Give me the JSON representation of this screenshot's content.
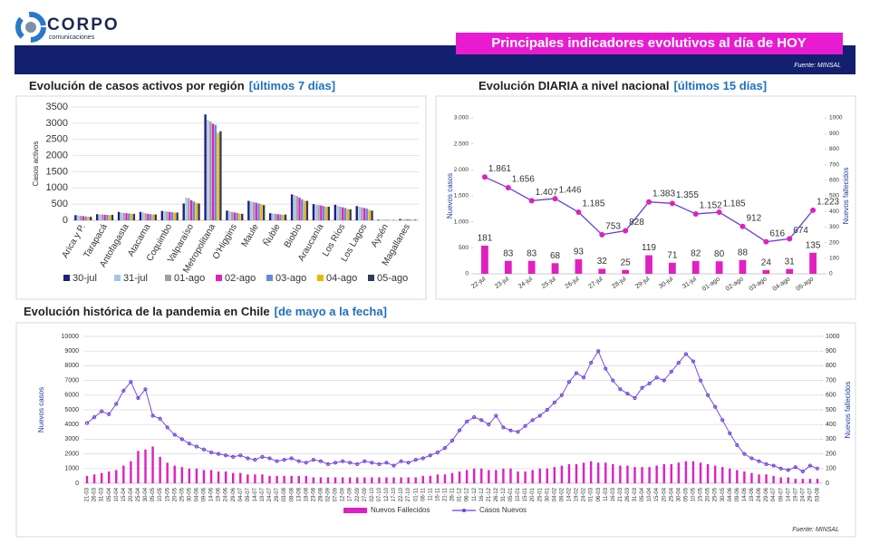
{
  "header": {
    "brand": "CORPO",
    "brand_sub": "comunicaciones",
    "title": "Principales indicadores evolutivos al día de HOY",
    "source": "Fuente: MINSAL"
  },
  "footer": {
    "source": "Fuente: MINSAL"
  },
  "chart_data": [
    {
      "type": "bar",
      "title": "Evolución de casos activos por región",
      "subtitle": "[últimos 7 días]",
      "y_label": "Casos activos",
      "categories": [
        "Arica y P.",
        "Tarapacá",
        "Antofagasta",
        "Atacama",
        "Coquimbo",
        "Valparaíso",
        "Metropolitana",
        "O'Higgins",
        "Maule",
        "Ñuble",
        "Biobío",
        "Araucanía",
        "Los Ríos",
        "Los Lagos",
        "Aysén",
        "Magallanes"
      ],
      "series": [
        {
          "name": "30-jul",
          "color": "#1f1f7a",
          "values": [
            160,
            190,
            260,
            260,
            290,
            520,
            3270,
            300,
            600,
            220,
            800,
            500,
            480,
            440,
            20,
            40
          ]
        },
        {
          "name": "31-jul",
          "color": "#a9c4eb",
          "values": [
            150,
            180,
            240,
            240,
            280,
            700,
            3100,
            280,
            580,
            210,
            780,
            480,
            450,
            420,
            20,
            35
          ]
        },
        {
          "name": "01-ago",
          "color": "#a0a0a0",
          "values": [
            140,
            180,
            230,
            220,
            270,
            680,
            3050,
            260,
            560,
            200,
            750,
            470,
            420,
            400,
            15,
            30
          ]
        },
        {
          "name": "02-ago",
          "color": "#e020c0",
          "values": [
            130,
            170,
            220,
            200,
            260,
            620,
            2980,
            240,
            540,
            190,
            700,
            460,
            400,
            380,
            15,
            30
          ]
        },
        {
          "name": "03-ago",
          "color": "#5b8fd9",
          "values": [
            120,
            170,
            210,
            190,
            250,
            580,
            2950,
            230,
            520,
            180,
            650,
            440,
            380,
            360,
            12,
            25
          ]
        },
        {
          "name": "04-ago",
          "color": "#f0b400",
          "values": [
            110,
            160,
            200,
            180,
            240,
            540,
            2700,
            210,
            500,
            170,
            600,
            420,
            350,
            320,
            10,
            20
          ]
        },
        {
          "name": "05-ago",
          "color": "#2f3a5a",
          "values": [
            110,
            170,
            200,
            180,
            240,
            520,
            2750,
            200,
            470,
            180,
            600,
            420,
            340,
            300,
            10,
            20
          ]
        }
      ],
      "ylim": [
        0,
        3500
      ],
      "yticks": [
        0,
        500,
        1000,
        1500,
        2000,
        2500,
        3000,
        3500
      ],
      "grid": true,
      "legend": "bottom"
    },
    {
      "type": "combo",
      "title": "Evolución DIARIA  a nivel nacional",
      "subtitle": "[últimos 15 días]",
      "y_label": "Nuevos casos",
      "y2_label": "Nuevos fallecidos",
      "categories": [
        "22-jul",
        "23-jul",
        "24-jul",
        "25-jul",
        "26-jul",
        "27-jul",
        "28-jul",
        "29-jul",
        "30-jul",
        "31-jul",
        "01-ago",
        "02-ago",
        "03-ago",
        "04-ago",
        "05-ago"
      ],
      "series": [
        {
          "type": "bar",
          "axis": "y2",
          "color": "#e020c0",
          "data_labels": true,
          "values": [
            181,
            83,
            83,
            68,
            93,
            32,
            25,
            119,
            71,
            82,
            80,
            88,
            24,
            31,
            135
          ]
        },
        {
          "type": "line",
          "color": "#6a3de0",
          "marker_color": "#e020c0",
          "values": [
            1861,
            1656,
            1407,
            1446,
            1185,
            753,
            828,
            1383,
            1355,
            1152,
            1185,
            912,
            616,
            674,
            1223
          ],
          "value_labels": [
            "1.861",
            "1.656",
            "1.407",
            "1.446",
            "1.185",
            "753",
            "828",
            "1.383",
            "1.355",
            "1.152",
            "1.185",
            "912",
            "616",
            "674",
            "1.223"
          ]
        }
      ],
      "ylim": [
        0,
        3000
      ],
      "yticks": [
        0,
        500,
        {
          "value": 1000,
          "label": "1.000"
        },
        {
          "value": 1500,
          "label": "1.500"
        },
        {
          "value": 2000,
          "label": "2.000"
        },
        {
          "value": 2500,
          "label": "2.500"
        },
        {
          "value": 3000,
          "label": "3.000"
        }
      ],
      "y2lim": [
        0,
        1000
      ],
      "y2ticks": [
        0,
        100,
        200,
        300,
        400,
        500,
        600,
        700,
        800,
        900,
        1000
      ],
      "grid": false
    },
    {
      "type": "combo",
      "title": "Evolución histórica de la pandemia en Chile",
      "subtitle": "[de mayo a la fecha]",
      "y_label": "Nuevos casos",
      "y2_label": "Nuevos fallecidos",
      "categories": [
        "21-03",
        "26-03",
        "31-03",
        "05-04",
        "10-04",
        "15-04",
        "20-04",
        "25-04",
        "30-04",
        "05-05",
        "10-05",
        "15-05",
        "20-05",
        "25-05",
        "30-05",
        "04-06",
        "09-06",
        "14-06",
        "19-06",
        "24-06",
        "29-06",
        "04-07",
        "09-07",
        "14-07",
        "19-07",
        "24-07",
        "29-07",
        "03-08",
        "08-08",
        "13-08",
        "18-08",
        "23-08",
        "28-08",
        "02-09",
        "07-09",
        "12-09",
        "17-09",
        "22-09",
        "27-09",
        "02-10",
        "07-10",
        "12-10",
        "17-10",
        "22-10",
        "27-10",
        "01-11",
        "06-11",
        "11-11",
        "16-11",
        "21-11",
        "26-11",
        "01-12",
        "06-12",
        "11-12",
        "16-12",
        "21-12",
        "26-12",
        "31-12",
        "05-01",
        "10-01",
        "15-01",
        "20-01",
        "25-01",
        "30-01",
        "04-02",
        "09-02",
        "14-02",
        "19-02",
        "24-02",
        "01-03",
        "06-03",
        "11-03",
        "16-03",
        "21-03",
        "26-03",
        "31-03",
        "05-04",
        "10-04",
        "15-04",
        "20-04",
        "25-04",
        "30-04",
        "05-05",
        "10-05",
        "15-05",
        "20-05",
        "25-05",
        "30-05",
        "04-06",
        "09-06",
        "14-06",
        "19-06",
        "24-06",
        "29-06",
        "04-07",
        "09-07",
        "14-07",
        "19-07",
        "24-07",
        "29-07",
        "03-08"
      ],
      "series": [
        {
          "type": "bar",
          "axis": "y2",
          "name": "Nuevos Fallecidos",
          "color": "#e020c0",
          "values": [
            50,
            60,
            70,
            80,
            90,
            120,
            150,
            220,
            230,
            250,
            180,
            140,
            120,
            110,
            100,
            100,
            90,
            90,
            80,
            80,
            70,
            70,
            60,
            60,
            60,
            50,
            50,
            50,
            50,
            50,
            50,
            40,
            40,
            40,
            40,
            40,
            40,
            40,
            40,
            40,
            40,
            40,
            40,
            40,
            40,
            40,
            50,
            50,
            60,
            60,
            70,
            80,
            90,
            100,
            100,
            90,
            90,
            100,
            100,
            80,
            80,
            90,
            100,
            100,
            110,
            120,
            130,
            130,
            140,
            150,
            140,
            140,
            130,
            120,
            120,
            110,
            110,
            110,
            120,
            130,
            130,
            140,
            150,
            150,
            140,
            130,
            120,
            110,
            100,
            90,
            80,
            70,
            60,
            60,
            50,
            40,
            40,
            30,
            30,
            30,
            30
          ]
        },
        {
          "type": "line",
          "name": "Casos Nuevos",
          "color": "#6a3de0",
          "marker_color": "#6a3de0",
          "values": [
            4100,
            4500,
            4900,
            4700,
            5400,
            6300,
            6900,
            5800,
            6400,
            4600,
            4400,
            3800,
            3300,
            3000,
            2700,
            2500,
            2300,
            2100,
            2000,
            1900,
            1800,
            1900,
            1700,
            1600,
            1800,
            1700,
            1500,
            1600,
            1700,
            1500,
            1400,
            1600,
            1500,
            1300,
            1400,
            1500,
            1400,
            1300,
            1500,
            1400,
            1300,
            1400,
            1200,
            1500,
            1400,
            1600,
            1700,
            1900,
            2100,
            2400,
            2900,
            3600,
            4200,
            4500,
            4300,
            4000,
            4600,
            3800,
            3600,
            3500,
            3900,
            4300,
            4600,
            5000,
            5500,
            6000,
            6900,
            7500,
            7200,
            8200,
            9000,
            7800,
            7000,
            6400,
            6100,
            5800,
            6500,
            6800,
            7200,
            7000,
            7600,
            8200,
            8800,
            8300,
            7000,
            6000,
            5200,
            4300,
            3400,
            2600,
            2000,
            1700,
            1500,
            1300,
            1200,
            1000,
            900,
            1100,
            800,
            1200,
            1000
          ]
        }
      ],
      "ylim": [
        0,
        10000
      ],
      "yticks": [
        0,
        1000,
        2000,
        3000,
        4000,
        5000,
        6000,
        7000,
        8000,
        9000,
        10000
      ],
      "y2lim": [
        0,
        1000
      ],
      "y2ticks": [
        0,
        100,
        200,
        300,
        400,
        500,
        600,
        700,
        800,
        900,
        1000
      ],
      "grid": true,
      "legend": "bottom"
    }
  ]
}
